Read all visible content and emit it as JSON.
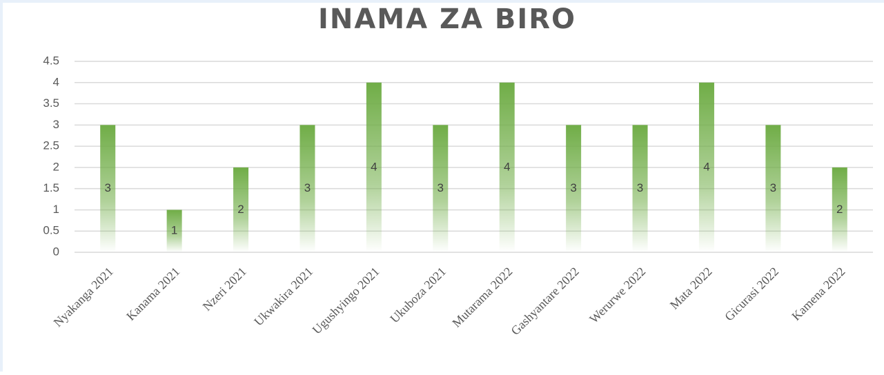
{
  "chart_data": {
    "type": "bar",
    "title": "INAMA ZA BIRO",
    "categories": [
      "Nyakanga 2021",
      "Kanama 2021",
      "Nzeri 2021",
      "Ukwakira 2021",
      "Ugushyingo 2021",
      "Ukuboza 2021",
      "Mutarama 2022",
      "Gashyantare 2022",
      "Werurwe 2022",
      "Mata 2022",
      "Gicurasi 2022",
      "Kamena 2022"
    ],
    "values": [
      3,
      1,
      2,
      3,
      4,
      3,
      4,
      3,
      3,
      4,
      3,
      2
    ],
    "color": "#70ad47",
    "ylim": [
      0,
      4.5
    ],
    "yticks": [
      0,
      0.5,
      1,
      1.5,
      2,
      2.5,
      3,
      3.5,
      4,
      4.5
    ],
    "grid": true
  }
}
